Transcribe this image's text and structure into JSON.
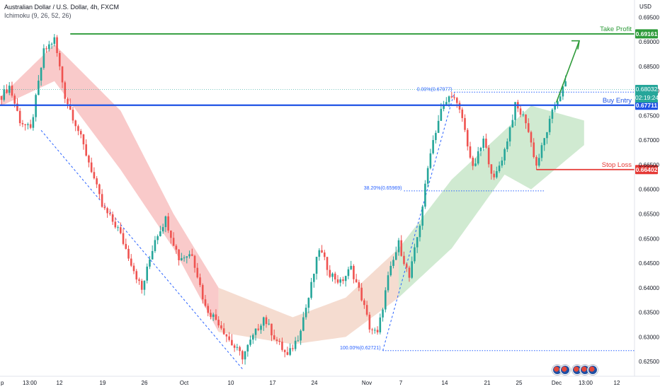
{
  "header": {
    "title": "Australian Dollar / U.S. Dollar, 4h, FXCM",
    "indicator": "Ichimoku (9, 26, 52, 26)"
  },
  "currency": "USD",
  "countdown": "02:19:24",
  "colors": {
    "up": "#26a69a",
    "down": "#ef5350",
    "take_profit": "#2e9b3a",
    "buy_entry": "#1e53e5",
    "stop_loss": "#e53935",
    "fib": "#2962ff",
    "cloud_bull": "#c8e6c9",
    "cloud_bear": "#f8c1c1"
  },
  "chart_data": {
    "type": "candlestick",
    "y_axis": {
      "range": [
        0.622,
        0.6985
      ],
      "ticks": [
        "0.69500",
        "0.69000",
        "0.68500",
        "0.68000",
        "0.67500",
        "0.67000",
        "0.66500",
        "0.66000",
        "0.65500",
        "0.65000",
        "0.64500",
        "0.64000",
        "0.63500",
        "0.63000",
        "0.62500"
      ]
    },
    "x_axis": {
      "ticks": [
        "p",
        "13:00",
        "12",
        "19",
        "26",
        "Oct",
        "10",
        "17",
        "24",
        "Nov",
        "7",
        "14",
        "21",
        "25",
        "Dec",
        "13:00",
        "12"
      ]
    },
    "price_path": [
      [
        0,
        0.679
      ],
      [
        3,
        0.681
      ],
      [
        7,
        0.674
      ],
      [
        11,
        0.672
      ],
      [
        16,
        0.688
      ],
      [
        20,
        0.6905
      ],
      [
        24,
        0.679
      ],
      [
        29,
        0.672
      ],
      [
        34,
        0.664
      ],
      [
        38,
        0.6565
      ],
      [
        44,
        0.652
      ],
      [
        48,
        0.6465
      ],
      [
        53,
        0.6395
      ],
      [
        58,
        0.65
      ],
      [
        62,
        0.654
      ],
      [
        67,
        0.646
      ],
      [
        72,
        0.647
      ],
      [
        77,
        0.636
      ],
      [
        82,
        0.633
      ],
      [
        87,
        0.6285
      ],
      [
        91,
        0.626
      ],
      [
        95,
        0.63
      ],
      [
        99,
        0.634
      ],
      [
        103,
        0.63
      ],
      [
        108,
        0.626
      ],
      [
        112,
        0.63
      ],
      [
        116,
        0.638
      ],
      [
        120,
        0.648
      ],
      [
        124,
        0.643
      ],
      [
        128,
        0.641
      ],
      [
        132,
        0.644
      ],
      [
        136,
        0.638
      ],
      [
        139,
        0.632
      ],
      [
        142,
        0.6305
      ],
      [
        146,
        0.642
      ],
      [
        150,
        0.649
      ],
      [
        154,
        0.642
      ],
      [
        158,
        0.653
      ],
      [
        162,
        0.668
      ],
      [
        166,
        0.676
      ],
      [
        170,
        0.6795
      ],
      [
        174,
        0.6745
      ],
      [
        178,
        0.664
      ],
      [
        182,
        0.67
      ],
      [
        186,
        0.6618
      ],
      [
        190,
        0.668
      ],
      [
        194,
        0.677
      ],
      [
        198,
        0.674
      ],
      [
        202,
        0.6648
      ],
      [
        206,
        0.672
      ],
      [
        209,
        0.6772
      ],
      [
        213,
        0.6815
      ]
    ],
    "ichimoku_cloud": [
      {
        "range": [
          0,
          82
        ],
        "sentiment": "bearish",
        "upper_path": [
          [
            0,
            0.679
          ],
          [
            20,
            0.6895
          ],
          [
            45,
            0.676
          ],
          [
            65,
            0.655
          ],
          [
            82,
            0.64
          ]
        ],
        "lower_path": [
          [
            0,
            0.677
          ],
          [
            20,
            0.682
          ],
          [
            45,
            0.664
          ],
          [
            65,
            0.648
          ],
          [
            82,
            0.631
          ]
        ]
      },
      {
        "range": [
          82,
          150
        ],
        "sentiment": "mixed",
        "upper_path": [
          [
            82,
            0.64
          ],
          [
            110,
            0.634
          ],
          [
            130,
            0.638
          ],
          [
            150,
            0.648
          ]
        ],
        "lower_path": [
          [
            82,
            0.631
          ],
          [
            110,
            0.6285
          ],
          [
            130,
            0.63
          ],
          [
            150,
            0.638
          ]
        ]
      },
      {
        "range": [
          150,
          220
        ],
        "sentiment": "bullish",
        "upper_path": [
          [
            150,
            0.648
          ],
          [
            170,
            0.662
          ],
          [
            190,
            0.672
          ],
          [
            200,
            0.677
          ],
          [
            220,
            0.674
          ]
        ],
        "lower_path": [
          [
            150,
            0.638
          ],
          [
            170,
            0.648
          ],
          [
            190,
            0.663
          ],
          [
            200,
            0.66
          ],
          [
            220,
            0.669
          ]
        ]
      }
    ],
    "levels": [
      {
        "name": "Take Profit",
        "value": 0.69161,
        "label": "0.69161"
      },
      {
        "name": "Buy Entry",
        "value": 0.67711,
        "label": "0.67711"
      },
      {
        "name": "Stop Loss",
        "value": 0.66402,
        "label": "0.66402"
      }
    ],
    "current_price": {
      "value": 0.68032,
      "label": "0.68032"
    },
    "fibonacci": [
      {
        "label": "0.00%(0.67977)",
        "value": 0.67977
      },
      {
        "label": "38.20%(0.65969)",
        "value": 0.65969
      },
      {
        "label": "100.00%(0.62721)",
        "value": 0.62721
      }
    ]
  }
}
